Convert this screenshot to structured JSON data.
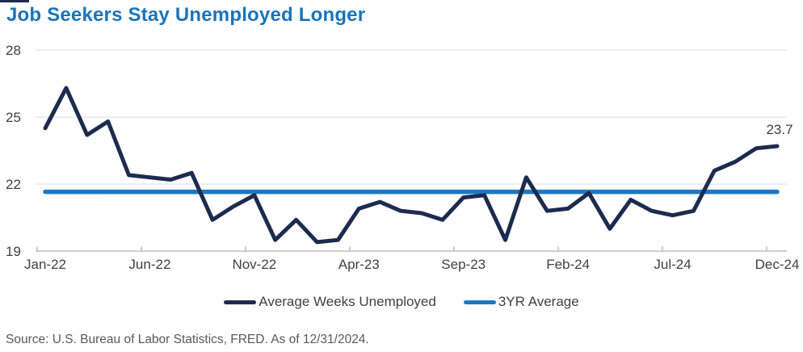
{
  "title": "Job Seekers Stay Unemployed Longer",
  "title_color": "#1A74BA",
  "accent_color": "#1C2B4F",
  "source_note": "Source: U.S. Bureau of Labor Statistics, FRED. As of 12/31/2024.",
  "legend": {
    "items": [
      {
        "label": "Average Weeks Unemployed",
        "color": "#1C2B4F"
      },
      {
        "label": "3YR Average",
        "color": "#1B79BE"
      }
    ]
  },
  "chart_data": {
    "type": "line",
    "title": "Job Seekers Stay Unemployed Longer",
    "x": [
      "Jan-22",
      "Feb-22",
      "Mar-22",
      "Apr-22",
      "May-22",
      "Jun-22",
      "Jul-22",
      "Aug-22",
      "Sep-22",
      "Oct-22",
      "Nov-22",
      "Dec-22",
      "Jan-23",
      "Feb-23",
      "Mar-23",
      "Apr-23",
      "May-23",
      "Jun-23",
      "Jul-23",
      "Aug-23",
      "Sep-23",
      "Oct-23",
      "Nov-23",
      "Dec-23",
      "Jan-24",
      "Feb-24",
      "Mar-24",
      "Apr-24",
      "May-24",
      "Jun-24",
      "Jul-24",
      "Aug-24",
      "Sep-24",
      "Oct-24",
      "Nov-24",
      "Dec-24"
    ],
    "series": [
      {
        "name": "Average Weeks Unemployed",
        "color": "#1C2B4F",
        "values": [
          24.5,
          26.3,
          24.2,
          24.8,
          22.4,
          22.3,
          22.2,
          22.5,
          20.4,
          21.0,
          21.5,
          19.5,
          20.4,
          19.4,
          19.5,
          20.9,
          21.2,
          20.8,
          20.7,
          20.4,
          21.4,
          21.5,
          19.5,
          22.3,
          20.8,
          20.9,
          21.6,
          20.0,
          21.3,
          20.8,
          20.6,
          20.8,
          22.6,
          23.0,
          23.6,
          23.7
        ]
      },
      {
        "name": "3YR Average",
        "color": "#1B79BE",
        "constant_value": 21.65
      }
    ],
    "ylim": [
      19,
      28
    ],
    "yticks": [
      28,
      25,
      22,
      19
    ],
    "xtick_labels": [
      "Jan-22",
      "Jun-22",
      "Nov-22",
      "Apr-23",
      "Sep-23",
      "Feb-24",
      "Jul-24",
      "Dec-24"
    ],
    "grid": "horizontal",
    "legend_position": "bottom",
    "annotation": {
      "text": "23.7",
      "x": "Dec-24",
      "series": "Average Weeks Unemployed"
    },
    "text_color": "#414042",
    "grid_color": "#E4E4E4",
    "axis_color": "#BDBDBD"
  }
}
